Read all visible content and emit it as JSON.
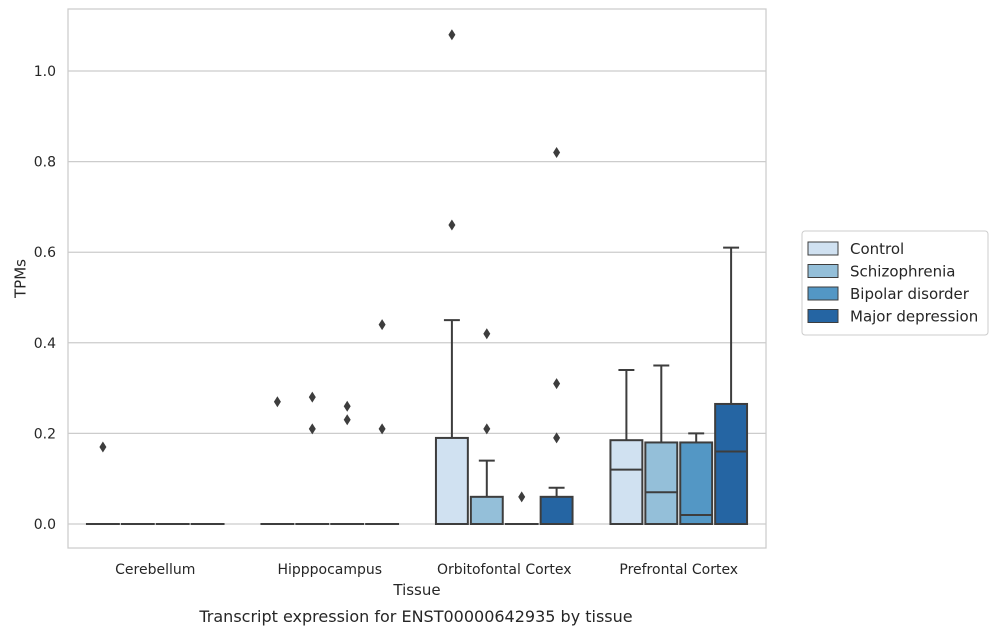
{
  "caption": "Transcript expression for ENST00000642935 by tissue",
  "chart_data": {
    "type": "box",
    "xlabel": "Tissue",
    "ylabel": "TPMs",
    "ylim": [
      -0.05,
      1.14
    ],
    "yticks": [
      0.0,
      0.2,
      0.4,
      0.6,
      0.8,
      1.0
    ],
    "ytick_labels": [
      "0.0",
      "0.2",
      "0.4",
      "0.6",
      "0.8",
      "1.0"
    ],
    "grid": "horizontal",
    "legend_position": "right",
    "categories": [
      "Cerebellum",
      "Hipppocampus",
      "Orbitofontal Cortex",
      "Prefrontal Cortex"
    ],
    "series": [
      {
        "name": "Control",
        "color": "#d0e1f1",
        "boxes": [
          {
            "q1": 0.0,
            "median": 0.0,
            "q3": 0.0,
            "whislo": 0.0,
            "whishi": 0.0,
            "fliers": [
              0.17
            ]
          },
          {
            "q1": 0.0,
            "median": 0.0,
            "q3": 0.0,
            "whislo": 0.0,
            "whishi": 0.0,
            "fliers": [
              0.27
            ]
          },
          {
            "q1": 0.0,
            "median": 0.0,
            "q3": 0.19,
            "whislo": 0.0,
            "whishi": 0.45,
            "fliers": [
              0.66,
              1.08
            ]
          },
          {
            "q1": 0.0,
            "median": 0.12,
            "q3": 0.185,
            "whislo": 0.0,
            "whishi": 0.34,
            "fliers": []
          }
        ]
      },
      {
        "name": "Schizophrenia",
        "color": "#94bfd9",
        "boxes": [
          {
            "q1": 0.0,
            "median": 0.0,
            "q3": 0.0,
            "whislo": 0.0,
            "whishi": 0.0,
            "fliers": []
          },
          {
            "q1": 0.0,
            "median": 0.0,
            "q3": 0.0,
            "whislo": 0.0,
            "whishi": 0.0,
            "fliers": [
              0.21,
              0.28
            ]
          },
          {
            "q1": 0.0,
            "median": 0.0,
            "q3": 0.06,
            "whislo": 0.0,
            "whishi": 0.14,
            "fliers": [
              0.21,
              0.42
            ]
          },
          {
            "q1": 0.0,
            "median": 0.07,
            "q3": 0.18,
            "whislo": 0.0,
            "whishi": 0.35,
            "fliers": []
          }
        ]
      },
      {
        "name": "Bipolar disorder",
        "color": "#5397c5",
        "boxes": [
          {
            "q1": 0.0,
            "median": 0.0,
            "q3": 0.0,
            "whislo": 0.0,
            "whishi": 0.0,
            "fliers": []
          },
          {
            "q1": 0.0,
            "median": 0.0,
            "q3": 0.0,
            "whislo": 0.0,
            "whishi": 0.0,
            "fliers": [
              0.23,
              0.26
            ]
          },
          {
            "q1": 0.0,
            "median": 0.0,
            "q3": 0.0,
            "whislo": 0.0,
            "whishi": 0.0,
            "fliers": [
              0.06
            ]
          },
          {
            "q1": 0.0,
            "median": 0.02,
            "q3": 0.18,
            "whislo": 0.0,
            "whishi": 0.2,
            "fliers": []
          }
        ]
      },
      {
        "name": "Major depression",
        "color": "#2565a3",
        "boxes": [
          {
            "q1": 0.0,
            "median": 0.0,
            "q3": 0.0,
            "whislo": 0.0,
            "whishi": 0.0,
            "fliers": []
          },
          {
            "q1": 0.0,
            "median": 0.0,
            "q3": 0.0,
            "whislo": 0.0,
            "whishi": 0.0,
            "fliers": [
              0.21,
              0.44
            ]
          },
          {
            "q1": 0.0,
            "median": 0.0,
            "q3": 0.06,
            "whislo": 0.0,
            "whishi": 0.08,
            "fliers": [
              0.19,
              0.31,
              0.82
            ]
          },
          {
            "q1": 0.0,
            "median": 0.16,
            "q3": 0.265,
            "whislo": 0.0,
            "whishi": 0.61,
            "fliers": []
          }
        ]
      }
    ]
  }
}
